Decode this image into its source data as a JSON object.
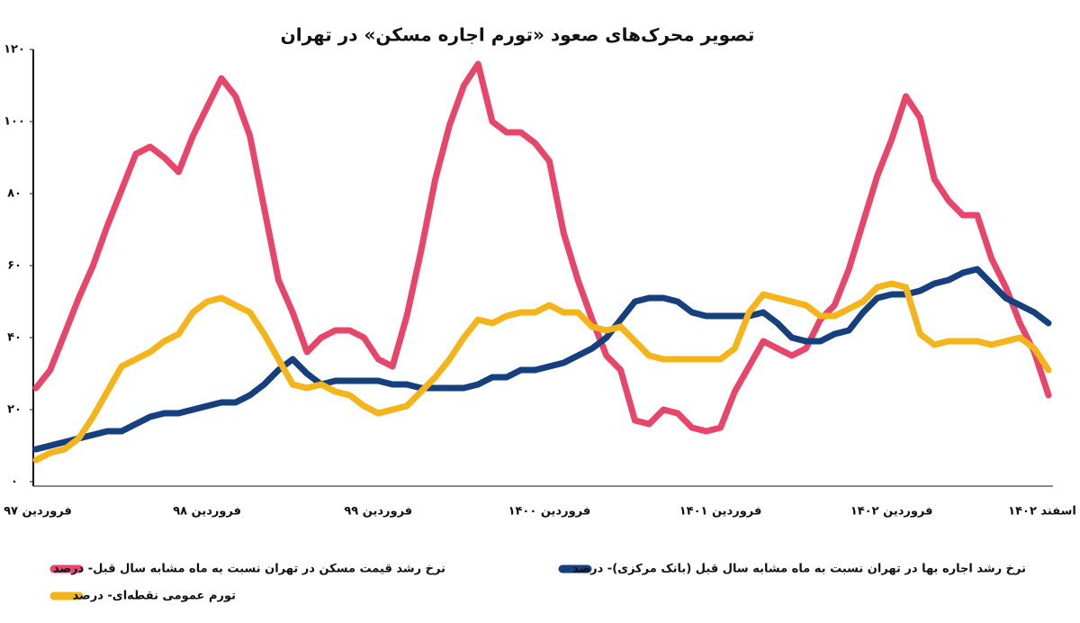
{
  "chart_data": {
    "type": "line",
    "title": "تصویر محرک‌های صعود «تورم اجاره مسکن» در تهران",
    "categories": [
      "فروردین ۹۷",
      null,
      null,
      null,
      null,
      null,
      null,
      null,
      null,
      null,
      null,
      null,
      "فروردین ۹۸",
      null,
      null,
      null,
      null,
      null,
      null,
      null,
      null,
      null,
      null,
      null,
      "فروردین ۹۹",
      null,
      null,
      null,
      null,
      null,
      null,
      null,
      null,
      null,
      null,
      null,
      "فروردین ۱۴۰۰",
      null,
      null,
      null,
      null,
      null,
      null,
      null,
      null,
      null,
      null,
      null,
      "فروردین ۱۴۰۱",
      null,
      null,
      null,
      null,
      null,
      null,
      null,
      null,
      null,
      null,
      null,
      "فروردین ۱۴۰۲",
      null,
      null,
      null,
      null,
      null,
      null,
      null,
      null,
      null,
      null,
      "اسفند ۱۴۰۲"
    ],
    "series": [
      {
        "name": "نرخ رشد قیمت مسکن در تهران نسبت به ماه مشابه سال قبل- درصد",
        "color": "#e8456b",
        "values": [
          26,
          31,
          41,
          51,
          60,
          71,
          81,
          91,
          93,
          90,
          86,
          96,
          104,
          112,
          107,
          96,
          76,
          56,
          47,
          36,
          40,
          42,
          42,
          40,
          34,
          32,
          46,
          64,
          84,
          99,
          110,
          116,
          100,
          97,
          97,
          94,
          89,
          69,
          56,
          45,
          35,
          31,
          17,
          16,
          20,
          19,
          15,
          14,
          15,
          25,
          32,
          39,
          37,
          35,
          37,
          45,
          49,
          59,
          72,
          85,
          95,
          107,
          101,
          84,
          78,
          74,
          74,
          62,
          54,
          44,
          36,
          24
        ]
      },
      {
        "name": "نرخ رشد اجاره بها در تهران نسبت به ماه مشابه سال قبل (بانک مرکزی)- درصد",
        "color": "#163f7e",
        "values": [
          9,
          10,
          11,
          12,
          13,
          14,
          14,
          16,
          18,
          19,
          19,
          20,
          21,
          22,
          22,
          24,
          27,
          31,
          34,
          30,
          27,
          28,
          28,
          28,
          28,
          27,
          27,
          26,
          26,
          26,
          26,
          27,
          29,
          29,
          31,
          31,
          32,
          33,
          35,
          37,
          40,
          45,
          50,
          51,
          51,
          50,
          47,
          46,
          46,
          46,
          46,
          47,
          44,
          40,
          39,
          39,
          41,
          42,
          47,
          51,
          52,
          52,
          53,
          55,
          56,
          58,
          59,
          55,
          51,
          49,
          47,
          44
        ]
      },
      {
        "name": "تورم عمومی نقطه‌ای- درصد",
        "color": "#f4b41a",
        "values": [
          6,
          8,
          9,
          12,
          18,
          25,
          32,
          34,
          36,
          39,
          41,
          47,
          50,
          51,
          49,
          47,
          41,
          34,
          27,
          26,
          27,
          25,
          24,
          21,
          19,
          20,
          21,
          25,
          29,
          34,
          40,
          45,
          44,
          46,
          47,
          47,
          49,
          47,
          47,
          43,
          42,
          43,
          39,
          35,
          34,
          34,
          34,
          34,
          34,
          37,
          47,
          52,
          51,
          50,
          49,
          46,
          46,
          48,
          50,
          54,
          55,
          54,
          41,
          38,
          39,
          39,
          39,
          38,
          39,
          40,
          37,
          31
        ]
      }
    ],
    "ylim": [
      0,
      120
    ],
    "yticks": [
      {
        "value": 0,
        "label": "۰"
      },
      {
        "value": 20,
        "label": "۲۰"
      },
      {
        "value": 40,
        "label": "۴۰"
      },
      {
        "value": 60,
        "label": "۶۰"
      },
      {
        "value": 80,
        "label": "۸۰"
      },
      {
        "value": 100,
        "label": "۱۰۰"
      },
      {
        "value": 120,
        "label": "۱۲۰"
      }
    ],
    "grid": false
  }
}
